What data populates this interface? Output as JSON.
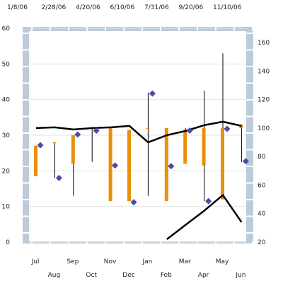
{
  "chart_data": {
    "type": "line",
    "title": "",
    "top_x_ticks": [
      "1/8/06",
      "2/28/06",
      "4/20/06",
      "6/10/06",
      "7/31/06",
      "9/20/06",
      "11/10/06"
    ],
    "categories": [
      "Jul",
      "Aug",
      "Sep",
      "Oct",
      "Nov",
      "Dec",
      "Jan",
      "Feb",
      "Mar",
      "Apr",
      "May",
      "Jun"
    ],
    "y_left": {
      "min": 0,
      "max": 60,
      "ticks": [
        0,
        10,
        20,
        30,
        40,
        50,
        60
      ]
    },
    "y_right": {
      "min": 20,
      "max": 170,
      "ticks": [
        20,
        40,
        60,
        80,
        100,
        120,
        140,
        160
      ]
    },
    "grid": true,
    "legend": "none",
    "series": [
      {
        "kind": "range-bar",
        "axis": "left",
        "color": "#e8900a",
        "open": [
          27,
          28,
          30,
          32,
          32,
          31.5,
          32,
          32,
          31.5,
          32,
          32,
          33
        ],
        "close": [
          18.5,
          28,
          22,
          32,
          11.5,
          11.5,
          32,
          11.5,
          22,
          21.5,
          12,
          32
        ],
        "high": [
          27,
          28,
          30,
          32,
          32,
          31.5,
          42,
          32,
          32,
          42.5,
          53,
          33
        ],
        "low": [
          18.5,
          18,
          13,
          22.5,
          11.5,
          11.5,
          13,
          11.5,
          22,
          11.5,
          12,
          22.5
        ]
      },
      {
        "kind": "marker",
        "axis": "left",
        "color": "#4a4aa8",
        "values": [
          27.2,
          18,
          30.2,
          31.3,
          21.5,
          11.2,
          41.7,
          21.3,
          31.3,
          11.5,
          31.8,
          22.7
        ]
      },
      {
        "kind": "line",
        "axis": "right",
        "color": "#000000",
        "values": [
          100,
          100.5,
          99,
          100,
          100.5,
          101.5,
          90,
          95,
          98,
          102,
          104.5,
          101.5
        ]
      },
      {
        "kind": "line",
        "axis": "right",
        "color": "#000000",
        "values": [
          null,
          null,
          null,
          null,
          null,
          null,
          null,
          22,
          32,
          42,
          53,
          34
        ]
      }
    ]
  }
}
